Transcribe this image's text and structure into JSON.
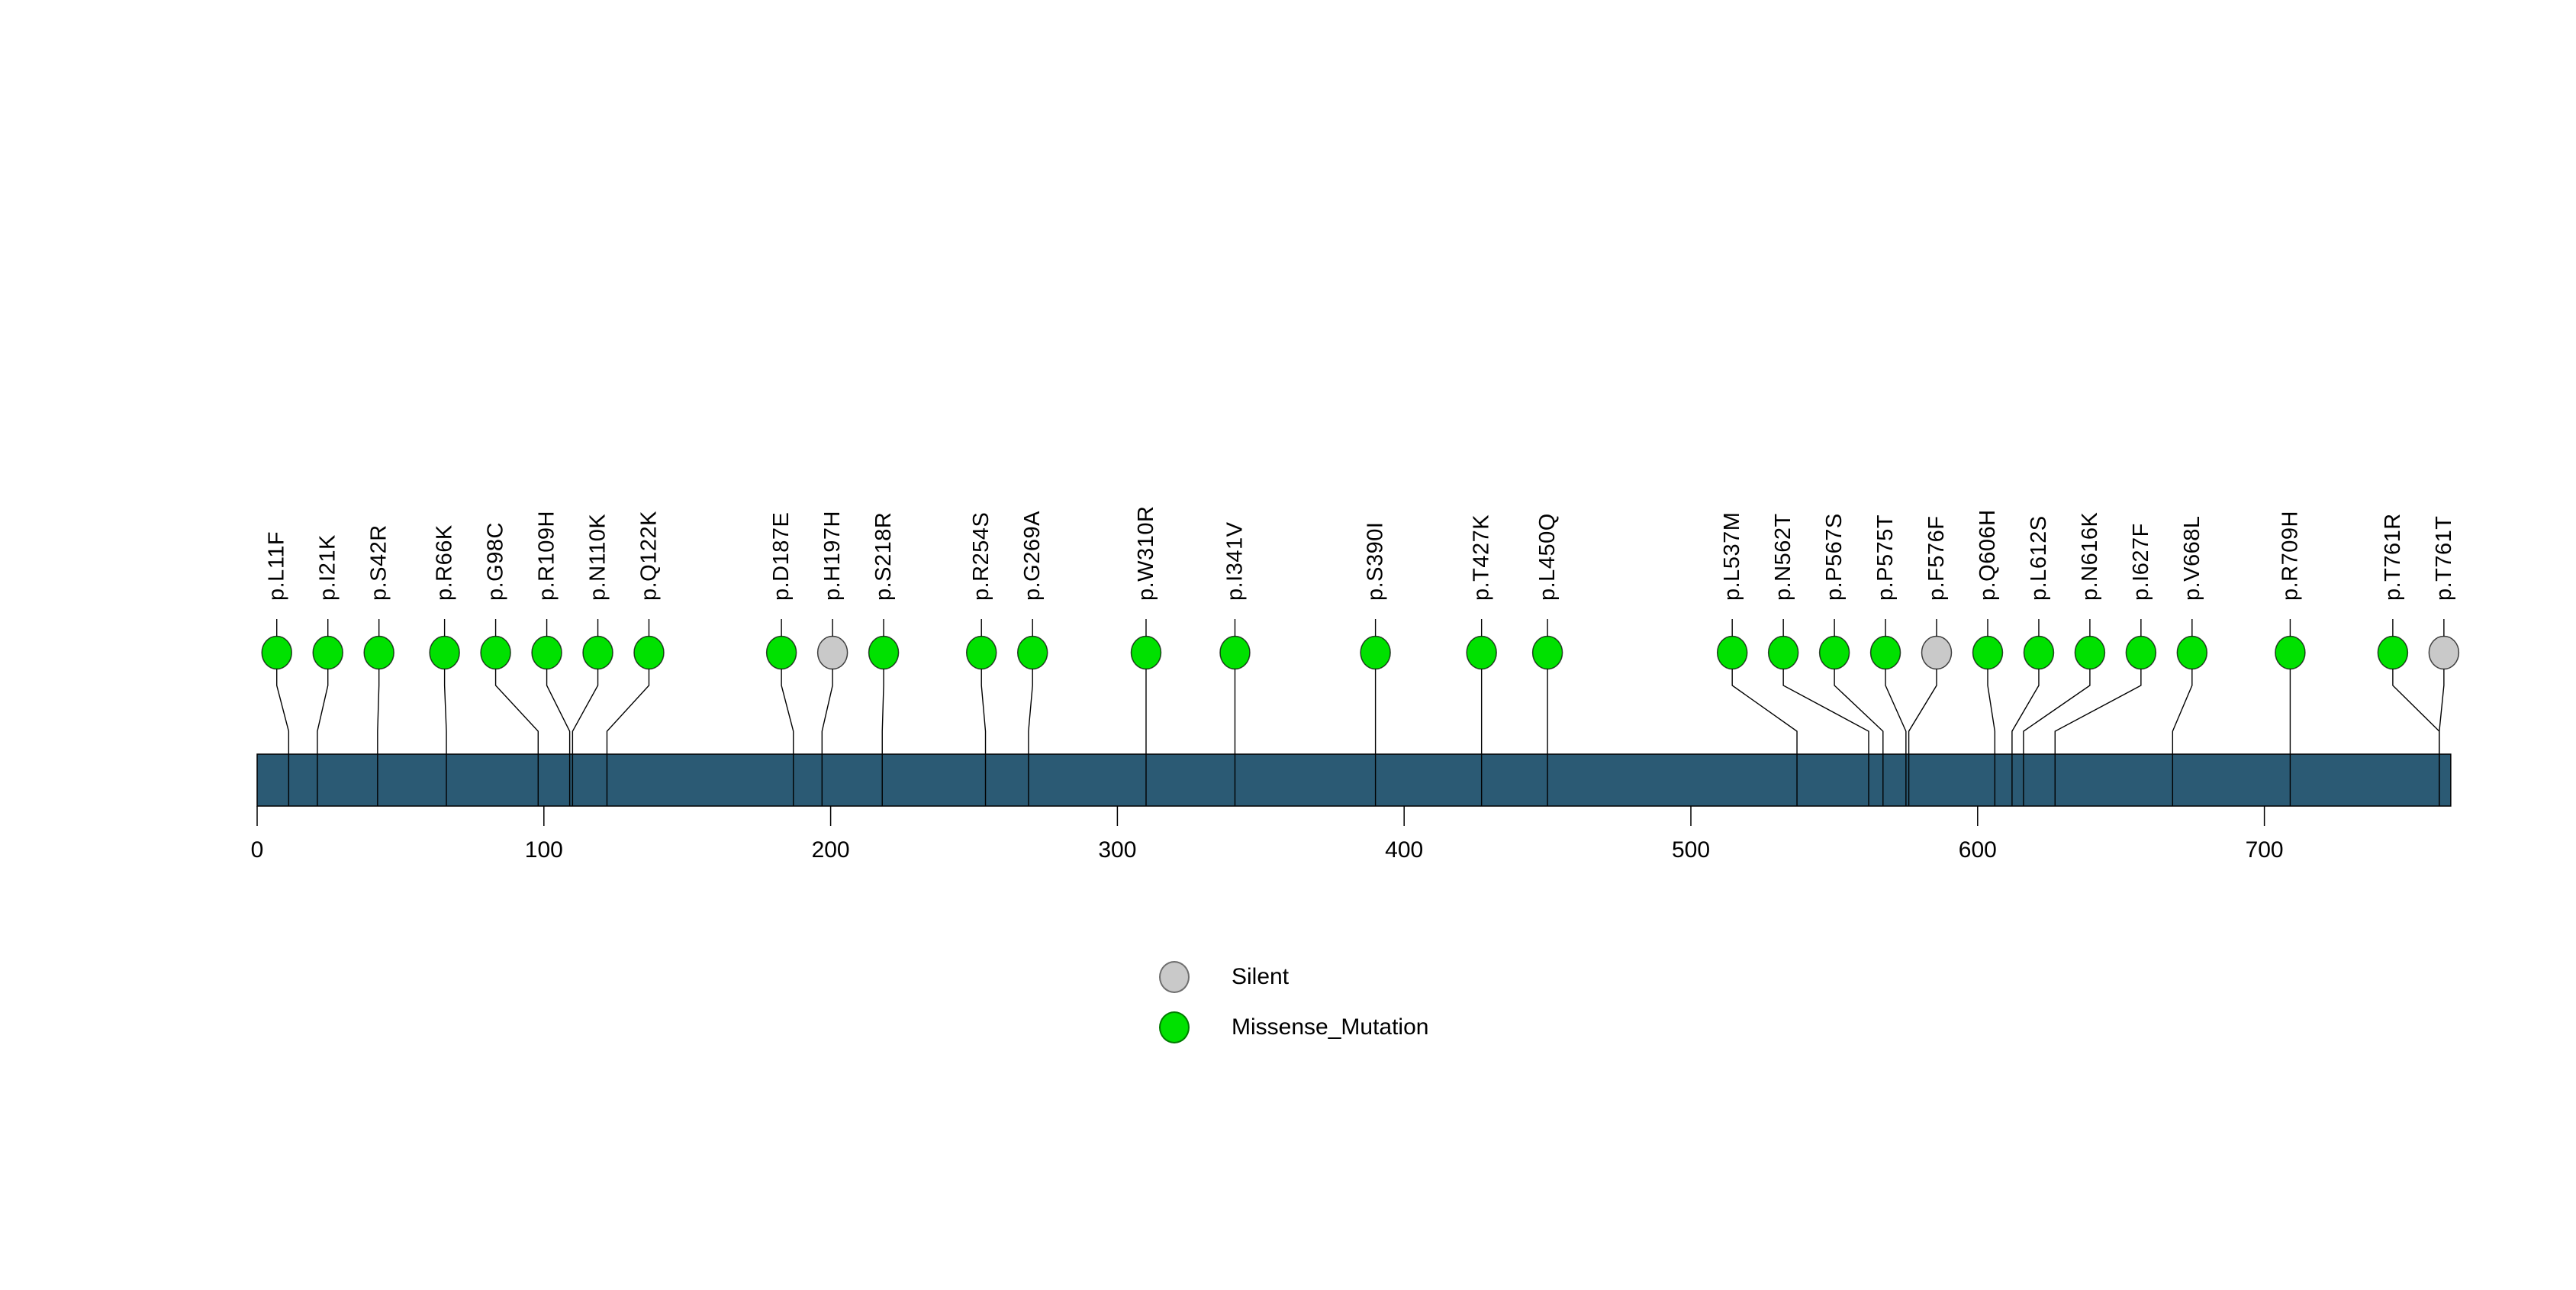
{
  "figure": {
    "background_color": "#ffffff"
  },
  "legend": {
    "items": [
      {
        "label": "Silent",
        "color": "#c9c9c9"
      },
      {
        "label": "Missense_Mutation",
        "color": "#00e100"
      }
    ]
  },
  "chart_data": {
    "type": "scatter",
    "subtype": "protein-lollipop-mutation-plot",
    "title": "",
    "xlabel": "",
    "ylabel": "",
    "grid": false,
    "legend_position": "bottom-center",
    "x_ticks": [
      0,
      100,
      200,
      300,
      400,
      500,
      600,
      700
    ],
    "xlim": [
      0,
      765
    ],
    "protein_length": 765,
    "protein_bar_color": "#2b5a74",
    "mutation_type_colors": {
      "Silent": "#c9c9c9",
      "Missense_Mutation": "#00e100"
    },
    "mutations": [
      {
        "label": "p.L11F",
        "position": 11,
        "type": "Missense_Mutation"
      },
      {
        "label": "p.I21K",
        "position": 21,
        "type": "Missense_Mutation"
      },
      {
        "label": "p.S42R",
        "position": 42,
        "type": "Missense_Mutation"
      },
      {
        "label": "p.R66K",
        "position": 66,
        "type": "Missense_Mutation"
      },
      {
        "label": "p.G98C",
        "position": 98,
        "type": "Missense_Mutation"
      },
      {
        "label": "p.R109H",
        "position": 109,
        "type": "Missense_Mutation"
      },
      {
        "label": "p.N110K",
        "position": 110,
        "type": "Missense_Mutation"
      },
      {
        "label": "p.Q122K",
        "position": 122,
        "type": "Missense_Mutation"
      },
      {
        "label": "p.D187E",
        "position": 187,
        "type": "Missense_Mutation"
      },
      {
        "label": "p.H197H",
        "position": 197,
        "type": "Silent"
      },
      {
        "label": "p.S218R",
        "position": 218,
        "type": "Missense_Mutation"
      },
      {
        "label": "p.R254S",
        "position": 254,
        "type": "Missense_Mutation"
      },
      {
        "label": "p.G269A",
        "position": 269,
        "type": "Missense_Mutation"
      },
      {
        "label": "p.W310R",
        "position": 310,
        "type": "Missense_Mutation"
      },
      {
        "label": "p.I341V",
        "position": 341,
        "type": "Missense_Mutation"
      },
      {
        "label": "p.S390I",
        "position": 390,
        "type": "Missense_Mutation"
      },
      {
        "label": "p.T427K",
        "position": 427,
        "type": "Missense_Mutation"
      },
      {
        "label": "p.L450Q",
        "position": 450,
        "type": "Missense_Mutation"
      },
      {
        "label": "p.L537M",
        "position": 537,
        "type": "Missense_Mutation"
      },
      {
        "label": "p.N562T",
        "position": 562,
        "type": "Missense_Mutation"
      },
      {
        "label": "p.P567S",
        "position": 567,
        "type": "Missense_Mutation"
      },
      {
        "label": "p.P575T",
        "position": 575,
        "type": "Missense_Mutation"
      },
      {
        "label": "p.F576F",
        "position": 576,
        "type": "Silent"
      },
      {
        "label": "p.Q606H",
        "position": 606,
        "type": "Missense_Mutation"
      },
      {
        "label": "p.L612S",
        "position": 612,
        "type": "Missense_Mutation"
      },
      {
        "label": "p.N616K",
        "position": 616,
        "type": "Missense_Mutation"
      },
      {
        "label": "p.I627F",
        "position": 627,
        "type": "Missense_Mutation"
      },
      {
        "label": "p.V668L",
        "position": 668,
        "type": "Missense_Mutation"
      },
      {
        "label": "p.R709H",
        "position": 709,
        "type": "Missense_Mutation"
      },
      {
        "label": "p.T761R",
        "position": 761,
        "type": "Missense_Mutation"
      },
      {
        "label": "p.T761T",
        "position": 761,
        "type": "Silent"
      }
    ]
  }
}
